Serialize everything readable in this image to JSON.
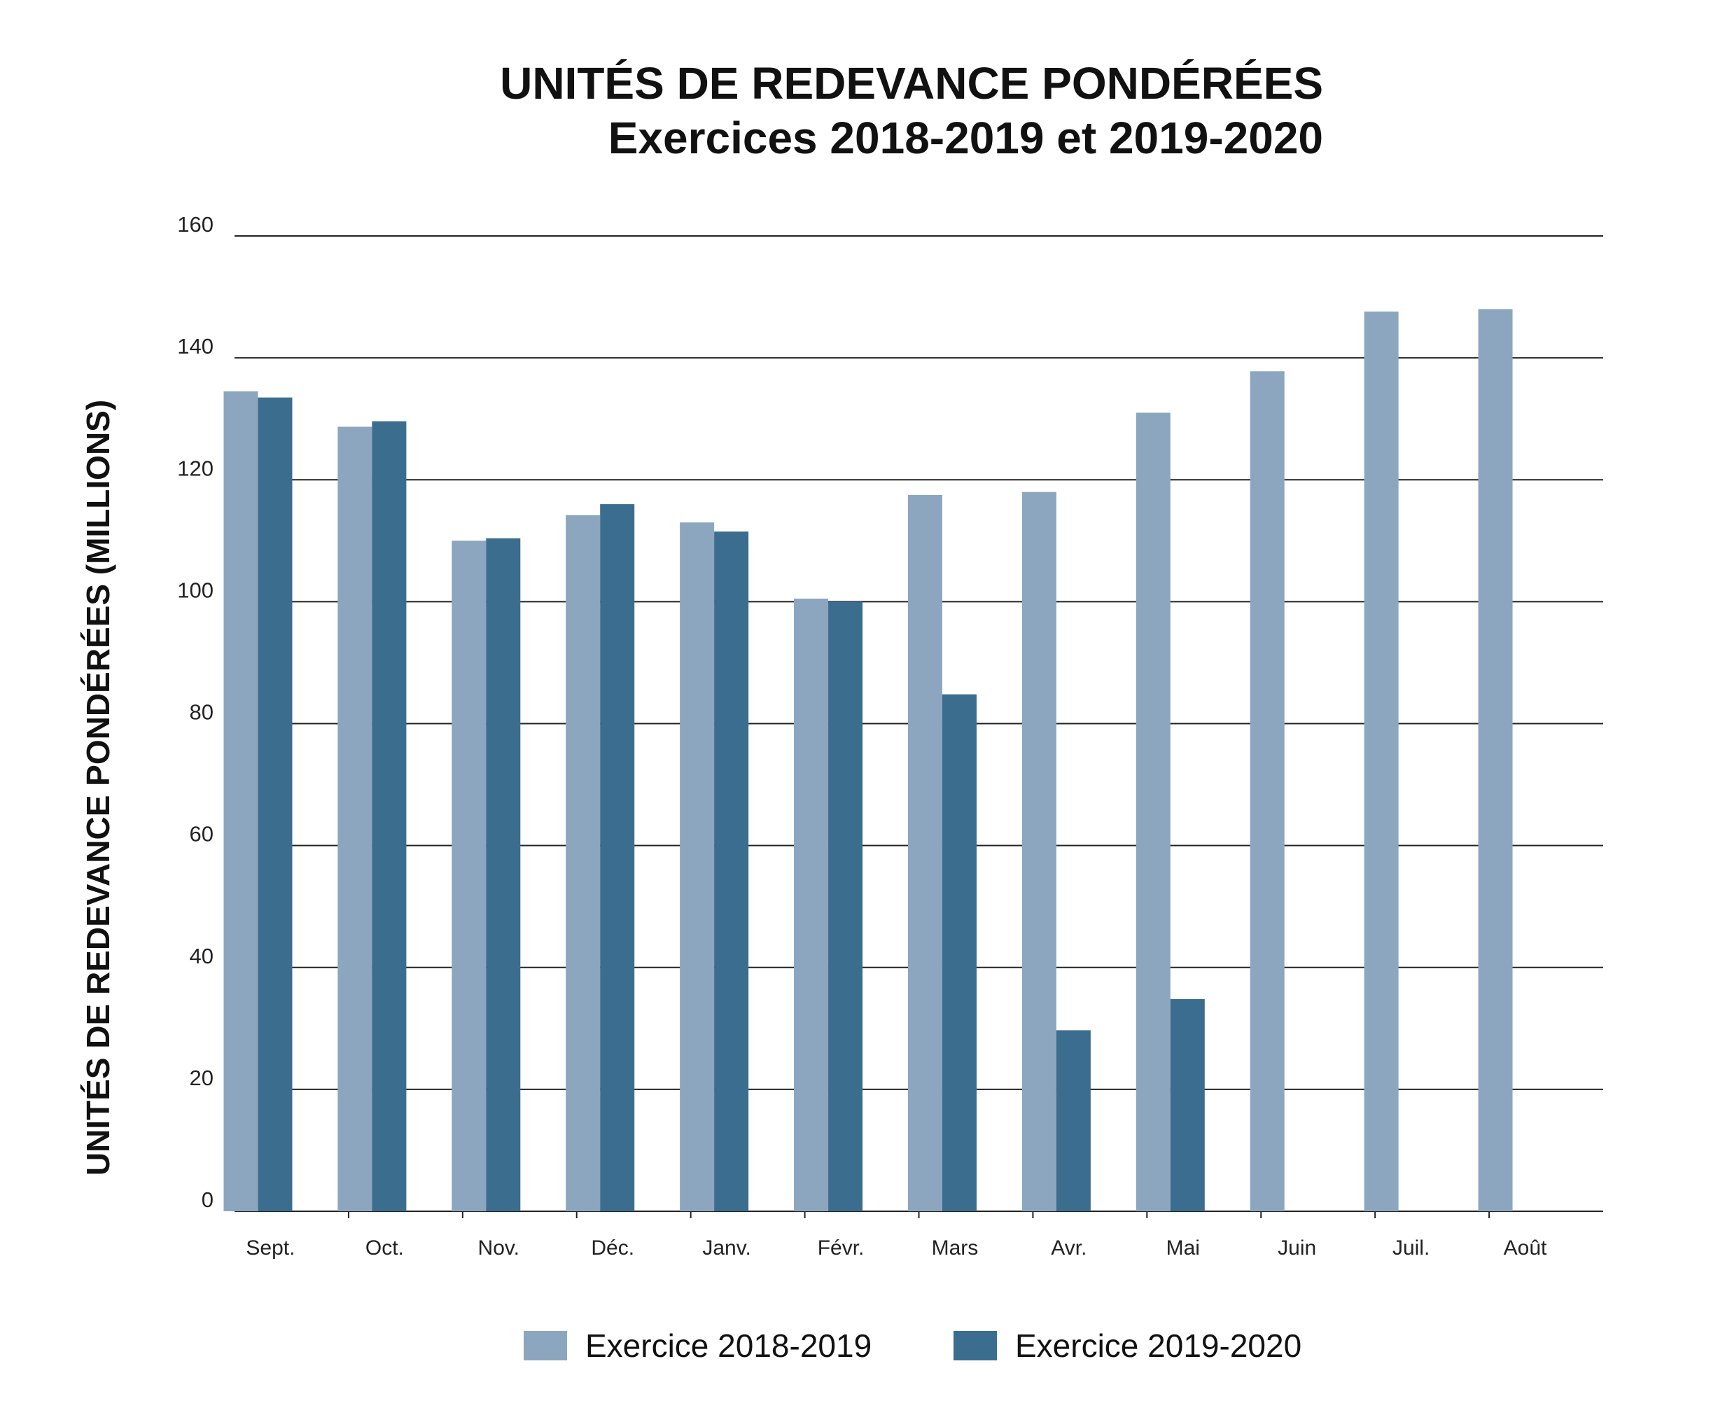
{
  "chart_data": {
    "type": "bar",
    "title": "UNITÉS DE REDEVANCE PONDÉRÉES",
    "subtitle": "Exercices 2018-2019 et 2019-2020",
    "xlabel": "",
    "ylabel": "UNITÉS DE REDEVANCE PONDÉRÉES (MILLIONS)",
    "ylim": [
      0,
      160
    ],
    "yticks": [
      0,
      20,
      40,
      60,
      80,
      100,
      120,
      140,
      160
    ],
    "grid": true,
    "legend_position": "bottom",
    "categories": [
      "Sept.",
      "Oct.",
      "Nov.",
      "Déc.",
      "Janv.",
      "Févr.",
      "Mars",
      "Avr.",
      "Mai",
      "Juin",
      "Juil.",
      "Août"
    ],
    "series": [
      {
        "name": "Exercice 2018-2019",
        "color": "#8ca6bf",
        "values": [
          134.5,
          128.7,
          110,
          114.2,
          113,
          100.5,
          117.5,
          118,
          131,
          137.8,
          147.6,
          148
        ]
      },
      {
        "name": "Exercice 2019-2020",
        "color": "#3b6d8f",
        "values": [
          133.5,
          129.6,
          110.4,
          116,
          111.5,
          100,
          84.8,
          29.7,
          34.8,
          null,
          null,
          null
        ]
      }
    ]
  }
}
